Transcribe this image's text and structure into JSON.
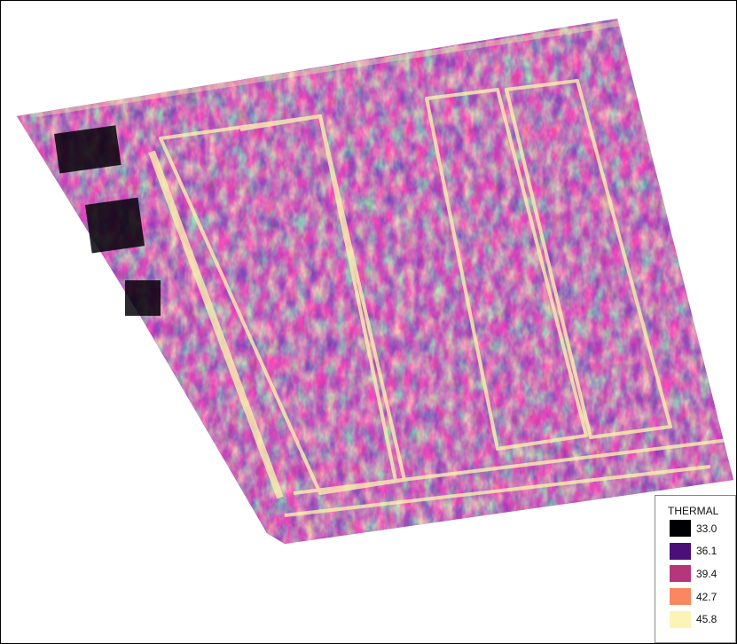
{
  "legend": {
    "title": "THERMAL",
    "items": [
      {
        "label": "33.0",
        "color": "#000004"
      },
      {
        "label": "36.1",
        "color": "#4a1078"
      },
      {
        "label": "39.4",
        "color": "#b5367a"
      },
      {
        "label": "42.7",
        "color": "#fb8761"
      },
      {
        "label": "45.8",
        "color": "#fcf3b6"
      }
    ]
  }
}
